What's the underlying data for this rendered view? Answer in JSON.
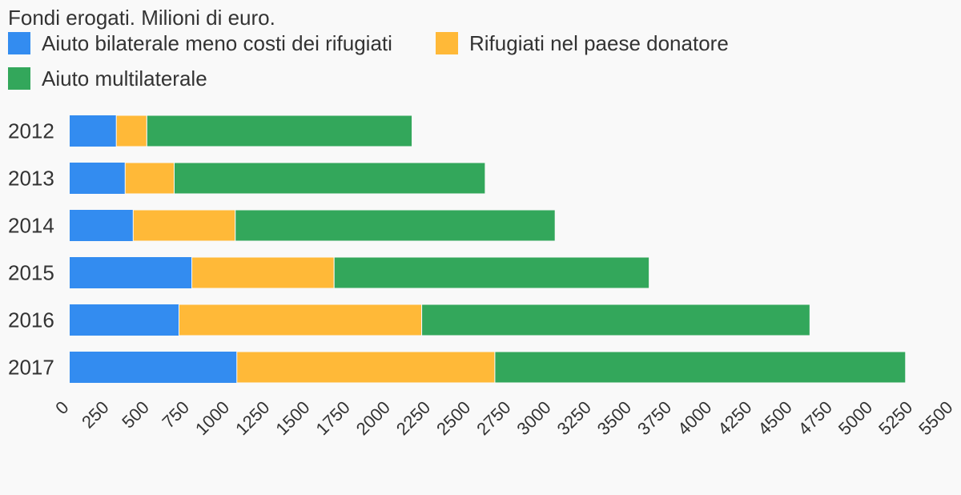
{
  "chart_data": {
    "type": "bar",
    "orientation": "horizontal",
    "stacked": true,
    "title": "Fondi erogati. Milioni di euro.",
    "categories": [
      "2012",
      "2013",
      "2014",
      "2015",
      "2016",
      "2017"
    ],
    "series": [
      {
        "name": "Aiuto bilaterale meno costi dei rifugiati",
        "color": "#338cf0",
        "values": [
          290,
          345,
          395,
          760,
          680,
          1040
        ]
      },
      {
        "name": "Rifugiati nel paese donatore",
        "color": "#ffb938",
        "values": [
          190,
          305,
          635,
          885,
          1510,
          1605
        ]
      },
      {
        "name": "Aiuto multilaterale",
        "color": "#33a75b",
        "values": [
          1650,
          1935,
          1990,
          1960,
          2415,
          2555
        ]
      }
    ],
    "xlim": [
      0,
      5500
    ],
    "xticks": [
      "0",
      "250",
      "500",
      "750",
      "1000",
      "1250",
      "1500",
      "1750",
      "2000",
      "2250",
      "2500",
      "2750",
      "3000",
      "3250",
      "3500",
      "3750",
      "4000",
      "4250",
      "4500",
      "4750",
      "5000",
      "5250",
      "5500"
    ],
    "xlabel": "",
    "ylabel": "",
    "grid": false,
    "legend_position": "top-left"
  }
}
